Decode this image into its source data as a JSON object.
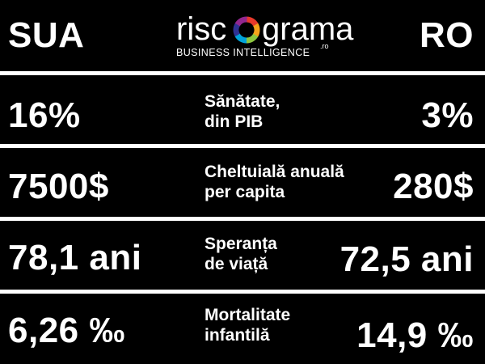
{
  "header": {
    "left": "SUA",
    "right": "RO",
    "logo": {
      "word_left": "risc",
      "word_right": "grama",
      "domain": ".ro",
      "tagline": "BUSINESS INTELLIGENCE",
      "ring_colors": [
        "#e8392b",
        "#f5a31a",
        "#8cc63f",
        "#00a3da",
        "#2e3192",
        "#92278f"
      ]
    }
  },
  "rows": [
    {
      "left": "16%",
      "label_line1": "Sănătate,",
      "label_line2": "din PIB",
      "right": "3%"
    },
    {
      "left": "7500$",
      "label_line1": "Cheltuială anuală",
      "label_line2": "per capita",
      "right": "280$"
    },
    {
      "left": "78,1 ani",
      "label_line1": "Speranța",
      "label_line2": "de viață",
      "right": "72,5 ani"
    },
    {
      "left": "6,26 ‰",
      "label_line1": "Mortalitate",
      "label_line2": "infantilă",
      "right": "14,9 ‰"
    }
  ]
}
